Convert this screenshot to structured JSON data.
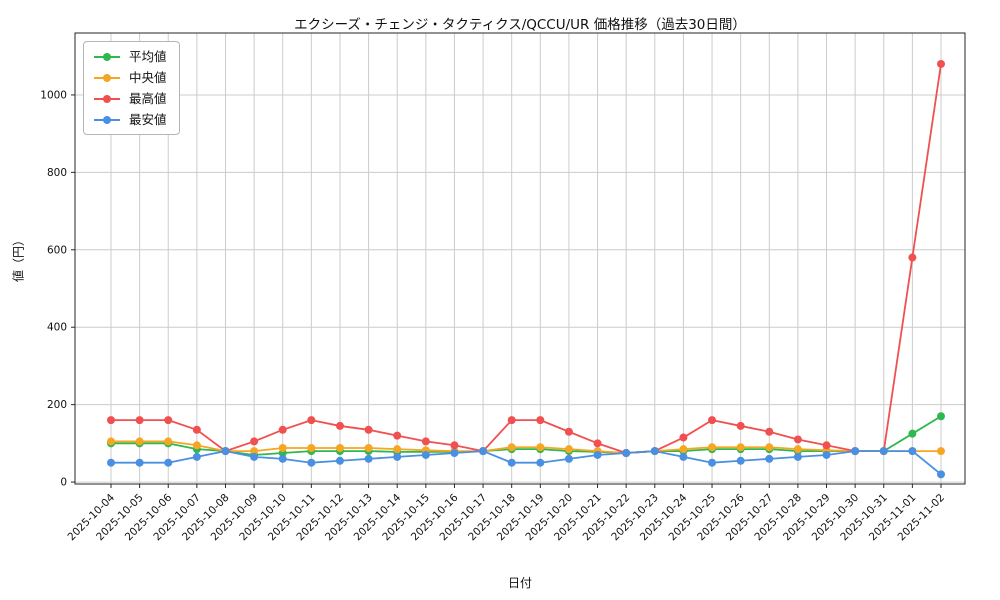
{
  "chart_data": {
    "type": "line",
    "title": "エクシーズ・チェンジ・タクティクス/QCCU/UR 価格推移（過去30日間）",
    "xlabel": "日付",
    "ylabel": "値（円）",
    "grid": true,
    "legend_position": "upper left",
    "marker": "circle",
    "yticks": [
      0,
      200,
      400,
      600,
      800,
      1000
    ],
    "ylim": [
      -5,
      1160
    ],
    "categories": [
      "2025-10-04",
      "2025-10-05",
      "2025-10-06",
      "2025-10-07",
      "2025-10-08",
      "2025-10-09",
      "2025-10-10",
      "2025-10-11",
      "2025-10-12",
      "2025-10-13",
      "2025-10-14",
      "2025-10-15",
      "2025-10-16",
      "2025-10-17",
      "2025-10-18",
      "2025-10-19",
      "2025-10-20",
      "2025-10-21",
      "2025-10-22",
      "2025-10-23",
      "2025-10-24",
      "2025-10-25",
      "2025-10-26",
      "2025-10-27",
      "2025-10-28",
      "2025-10-29",
      "2025-10-30",
      "2025-10-31",
      "2025-11-01",
      "2025-11-02"
    ],
    "series": [
      {
        "name": "平均値",
        "key": "average",
        "color": "#2eb84e",
        "values": [
          100,
          100,
          100,
          85,
          80,
          70,
          75,
          80,
          80,
          80,
          78,
          78,
          78,
          80,
          85,
          85,
          80,
          78,
          75,
          80,
          80,
          85,
          85,
          85,
          80,
          80,
          80,
          80,
          125,
          170
        ]
      },
      {
        "name": "中央値",
        "key": "median",
        "color": "#f5a623",
        "values": [
          105,
          105,
          105,
          95,
          80,
          80,
          88,
          88,
          88,
          88,
          85,
          82,
          80,
          80,
          90,
          90,
          85,
          80,
          75,
          80,
          85,
          90,
          90,
          90,
          85,
          82,
          80,
          80,
          80,
          80
        ]
      },
      {
        "name": "最高値",
        "key": "max",
        "color": "#f05050",
        "values": [
          160,
          160,
          160,
          135,
          80,
          105,
          135,
          160,
          145,
          135,
          120,
          105,
          95,
          80,
          160,
          160,
          130,
          100,
          75,
          80,
          115,
          160,
          145,
          130,
          110,
          95,
          80,
          80,
          580,
          1080
        ]
      },
      {
        "name": "最安値",
        "key": "min",
        "color": "#4a90e2",
        "values": [
          50,
          50,
          50,
          65,
          80,
          65,
          60,
          50,
          55,
          60,
          65,
          70,
          75,
          80,
          50,
          50,
          60,
          70,
          75,
          80,
          65,
          50,
          55,
          60,
          65,
          70,
          80,
          80,
          80,
          20
        ]
      }
    ]
  }
}
